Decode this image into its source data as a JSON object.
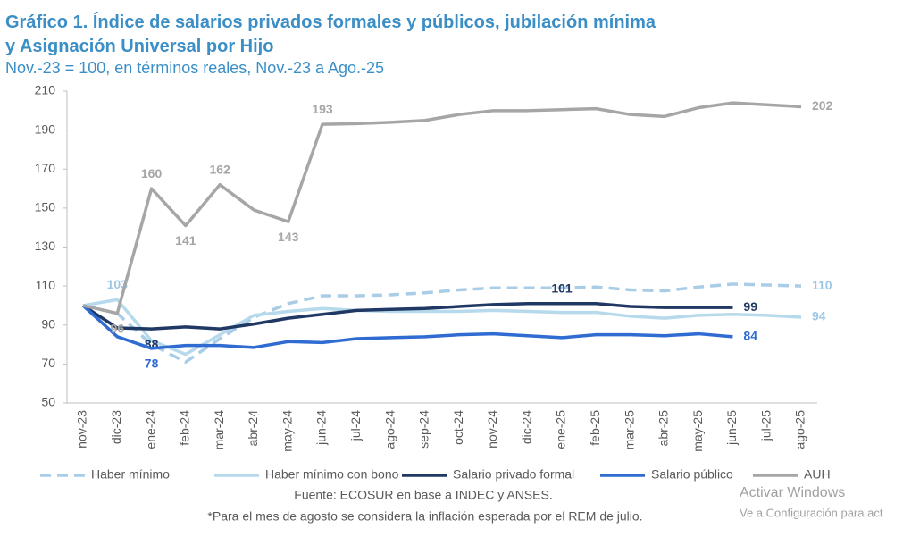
{
  "chart_data": {
    "type": "line",
    "title": "Gráfico 1. Índice de salarios privados formales y públicos, jubilación mínima",
    "title_line2": "y Asignación Universal por Hijo",
    "subtitle": "Nov.-23 = 100, en términos reales, Nov.-23 a Ago.-25",
    "categories": [
      "nov-23",
      "dic-23",
      "ene-24",
      "feb-24",
      "mar-24",
      "abr-24",
      "may-24",
      "jun-24",
      "jul-24",
      "ago-24",
      "sep-24",
      "oct-24",
      "nov-24",
      "dic-24",
      "ene-25",
      "feb-25",
      "mar-25",
      "abr-25",
      "may-25",
      "jun-25",
      "jul-25",
      "ago-25"
    ],
    "series": [
      {
        "name": "Haber mínimo",
        "color": "#a9cde6",
        "dash": true,
        "values": [
          100,
          96,
          80,
          71,
          83,
          94,
          101,
          105,
          105,
          105.5,
          106.5,
          108,
          109,
          109,
          109,
          109.5,
          108,
          107.5,
          109.5,
          111,
          110.5,
          110
        ],
        "labeled_points": [
          21
        ]
      },
      {
        "name": "Haber mínimo con bono",
        "color": "#b7d9ec",
        "dash": false,
        "values": [
          100,
          103,
          82,
          75,
          85,
          95,
          97,
          98.5,
          97.5,
          97,
          97,
          97,
          97.5,
          97,
          96.5,
          96.5,
          94.5,
          93.5,
          95,
          95.5,
          95,
          94
        ],
        "labeled_points": [
          1,
          21
        ]
      },
      {
        "name": "Salario privado formal",
        "color": "#1f3864",
        "dash": false,
        "values": [
          100,
          88.5,
          88,
          89,
          88,
          90.5,
          93.5,
          95.5,
          97.5,
          98,
          98.5,
          99.5,
          100.5,
          101,
          101,
          101,
          99.5,
          99,
          99,
          99,
          null,
          null
        ],
        "labeled_points": [
          2,
          14,
          19
        ]
      },
      {
        "name": "Salario público",
        "color": "#2f6bd1",
        "dash": false,
        "values": [
          100,
          84,
          78,
          79.5,
          79.5,
          78.5,
          81.5,
          81,
          83,
          83.5,
          84,
          85,
          85.5,
          84.5,
          83.5,
          85,
          85,
          84.5,
          85.5,
          84,
          null,
          null
        ],
        "labeled_points": [
          2,
          19
        ]
      },
      {
        "name": "AUH",
        "color": "#a6a6a6",
        "dash": false,
        "values": [
          100,
          96,
          160,
          141,
          162,
          149,
          143,
          193,
          193.3,
          194,
          195,
          198,
          200,
          200,
          200.5,
          201,
          198,
          197,
          201.5,
          204,
          203,
          202
        ],
        "labeled_points": [
          1,
          2,
          3,
          4,
          6,
          7,
          21
        ]
      }
    ],
    "ylim": [
      50,
      210
    ],
    "yticks": [
      50,
      70,
      90,
      110,
      130,
      150,
      170,
      190,
      210
    ],
    "source": "Fuente: ECOSUR en base a INDEC y ANSES.",
    "note": "*Para el mes de agosto se considera la inflación esperada por el REM de julio."
  },
  "watermark": {
    "line1": "Activar Windows",
    "line2": "Ve a Configuración para act"
  }
}
